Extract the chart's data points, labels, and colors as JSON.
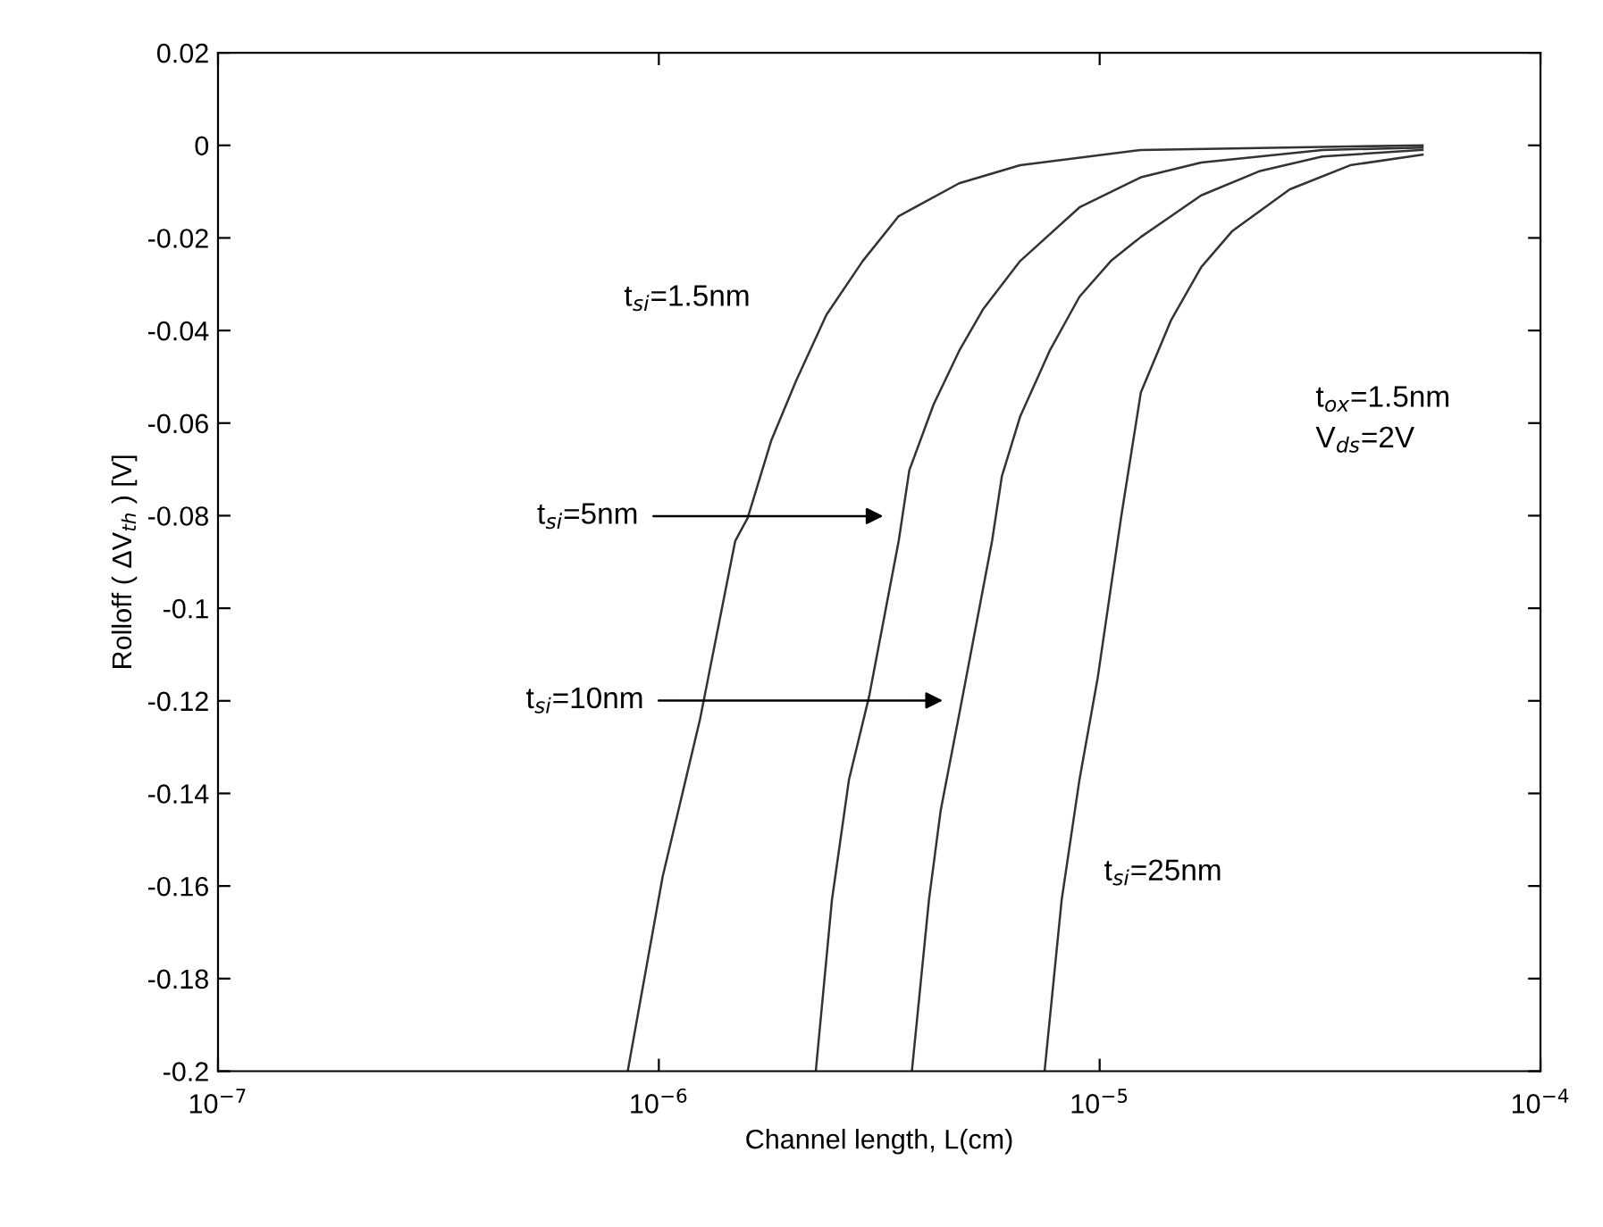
{
  "chart_data": {
    "type": "line",
    "xlabel": "Channel length, L(cm)",
    "ylabel": "Rolloff ( ΔV$_{th}$ ) [V]",
    "log": "x",
    "grid": false,
    "legend": false,
    "marker": "none",
    "line_style": "solid",
    "xlim": [
      1e-07,
      0.0001
    ],
    "xticks": [
      {
        "value": 1e-07,
        "label": "10$^{−7}$"
      },
      {
        "value": 1e-06,
        "label": "10$^{−6}$"
      },
      {
        "value": 1e-05,
        "label": "10$^{−5}$"
      },
      {
        "value": 0.0001,
        "label": "10$^{−4}$"
      }
    ],
    "ylim": [
      -0.2,
      0.02
    ],
    "yticks": [
      0.02,
      0,
      -0.02,
      -0.04,
      -0.06,
      -0.08,
      -0.1,
      -0.12,
      -0.14,
      -0.16,
      -0.18,
      -0.2
    ],
    "series": [
      {
        "name": "t$_{si}$=1.5nm",
        "color": "#333333",
        "x": [
          8.5e-07,
          1.02e-06,
          1.24e-06,
          1.49e-06,
          1.59e-06,
          1.8e-06,
          2.05e-06,
          2.4e-06,
          2.9e-06,
          3.5e-06,
          4.8e-06,
          6.6e-06,
          1.24e-05,
          5.4e-05
        ],
        "values": [
          -0.2,
          -0.158,
          -0.124,
          -0.0855,
          -0.0805,
          -0.0637,
          -0.0508,
          -0.0366,
          -0.025,
          -0.0153,
          -0.0082,
          -0.0043,
          -0.001,
          0.0
        ]
      },
      {
        "name": "t$_{si}$=5nm",
        "color": "#333333",
        "x": [
          2.27e-06,
          2.47e-06,
          2.7e-06,
          3e-06,
          3.5e-06,
          3.7e-06,
          4.2e-06,
          4.8e-06,
          5.45e-06,
          6.6e-06,
          9e-06,
          1.24e-05,
          1.7e-05,
          3.2e-05,
          5.4e-05
        ],
        "values": [
          -0.2,
          -0.163,
          -0.137,
          -0.119,
          -0.0855,
          -0.0702,
          -0.056,
          -0.0444,
          -0.0353,
          -0.025,
          -0.0134,
          -0.0069,
          -0.0037,
          -0.001,
          -0.0005
        ]
      },
      {
        "name": "t$_{si}$=10nm",
        "color": "#333333",
        "x": [
          3.75e-06,
          4.1e-06,
          4.36e-06,
          4.8e-06,
          5.7e-06,
          6e-06,
          6.6e-06,
          7.7e-06,
          9e-06,
          1.06e-05,
          1.24e-05,
          1.7e-05,
          2.3e-05,
          3.2e-05,
          5.4e-05
        ],
        "values": [
          -0.2,
          -0.163,
          -0.1436,
          -0.123,
          -0.0855,
          -0.0715,
          -0.0586,
          -0.0444,
          -0.0327,
          -0.025,
          -0.0198,
          -0.0108,
          -0.0056,
          -0.0024,
          -0.001
        ]
      },
      {
        "name": "t$_{si}$=25nm",
        "color": "#333333",
        "x": [
          7.5e-06,
          8.2e-06,
          9e-06,
          9.9e-06,
          1.12e-05,
          1.24e-05,
          1.45e-05,
          1.7e-05,
          2e-05,
          2.7e-05,
          3.7e-05,
          5.4e-05
        ],
        "values": [
          -0.2,
          -0.163,
          -0.137,
          -0.115,
          -0.08,
          -0.0534,
          -0.0379,
          -0.0263,
          -0.0185,
          -0.0095,
          -0.0043,
          -0.002
        ]
      }
    ],
    "annotations": [
      "t$_{ox}$=1.5nm\nV$_{ds}$=2V"
    ]
  }
}
